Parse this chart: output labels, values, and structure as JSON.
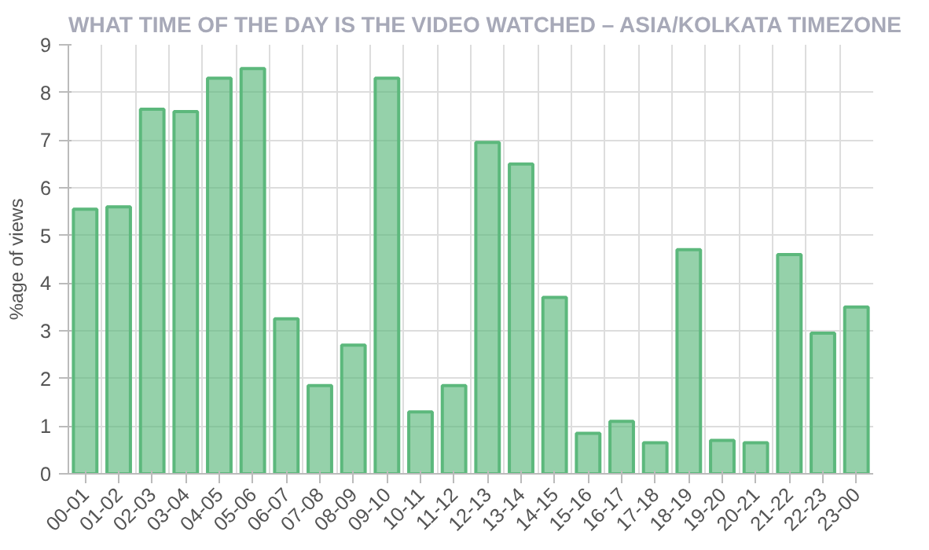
{
  "chart_data": {
    "type": "bar",
    "title": "WHAT TIME OF THE DAY IS THE VIDEO WATCHED – ASIA/KOLKATA TIMEZONE",
    "ylabel": "%age of views",
    "categories": [
      "00-01",
      "01-02",
      "02-03",
      "03-04",
      "04-05",
      "05-06",
      "06-07",
      "07-08",
      "08-09",
      "09-10",
      "10-11",
      "11-12",
      "12-13",
      "13-14",
      "14-15",
      "15-16",
      "16-17",
      "17-18",
      "18-19",
      "19-20",
      "20-21",
      "21-22",
      "22-23",
      "23-00"
    ],
    "series": [
      {
        "color": "#5cb87c",
        "values": [
          5.55,
          5.6,
          7.65,
          7.6,
          8.3,
          8.5,
          3.25,
          1.85,
          2.7,
          8.3,
          1.3,
          1.85,
          6.95,
          6.5,
          3.7,
          0.85,
          1.1,
          0.65,
          4.7,
          0.7,
          0.65,
          4.6,
          2.95,
          3.5
        ]
      }
    ],
    "ylim": [
      0,
      9
    ],
    "yticks": [
      0,
      1,
      2,
      3,
      4,
      5,
      6,
      7,
      8,
      9
    ],
    "grid": true
  }
}
